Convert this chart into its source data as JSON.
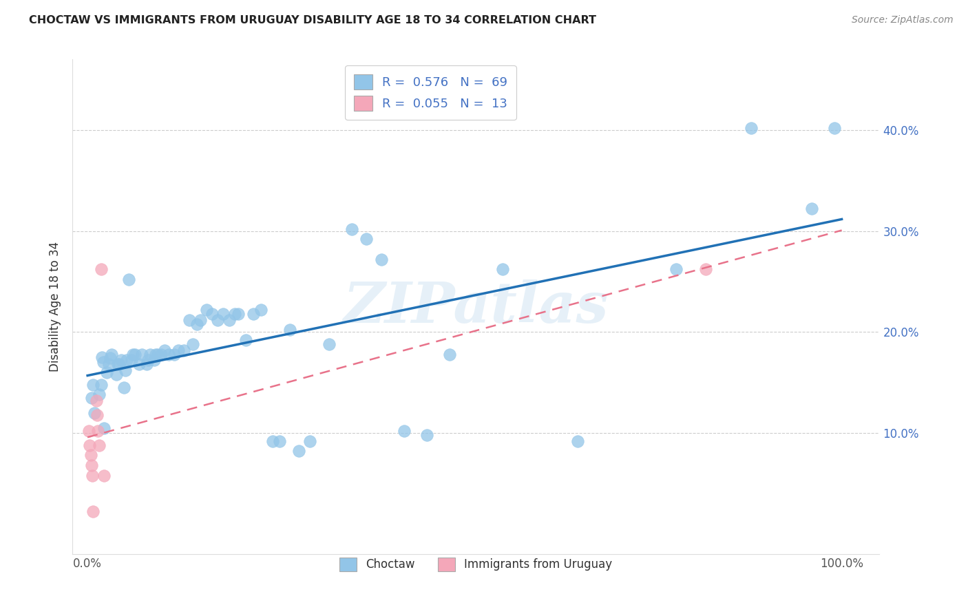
{
  "title": "CHOCTAW VS IMMIGRANTS FROM URUGUAY DISABILITY AGE 18 TO 34 CORRELATION CHART",
  "source": "Source: ZipAtlas.com",
  "ylabel": "Disability Age 18 to 34",
  "xlim": [
    -0.02,
    1.05
  ],
  "ylim": [
    -0.02,
    0.47
  ],
  "xticks": [
    0.0,
    0.2,
    0.4,
    0.6,
    0.8,
    1.0
  ],
  "xticklabels_show": [
    "0.0%",
    "",
    "",
    "",
    "",
    "100.0%"
  ],
  "ytick_positions": [
    0.1,
    0.2,
    0.3,
    0.4
  ],
  "yticklabels": [
    "10.0%",
    "20.0%",
    "30.0%",
    "40.0%"
  ],
  "legend_labels": [
    "Choctaw",
    "Immigrants from Uruguay"
  ],
  "choctaw_color": "#92C5E8",
  "choctaw_edge_color": "#92C5E8",
  "choctaw_line_color": "#2171B5",
  "uruguay_color": "#F4A7B9",
  "uruguay_edge_color": "#F4A7B9",
  "uruguay_line_color": "#E8728A",
  "R_choctaw": "0.576",
  "N_choctaw": "69",
  "R_uruguay": "0.055",
  "N_uruguay": "13",
  "watermark": "ZIPatlas",
  "choctaw_x": [
    0.005,
    0.007,
    0.009,
    0.015,
    0.018,
    0.019,
    0.021,
    0.022,
    0.025,
    0.028,
    0.03,
    0.032,
    0.038,
    0.04,
    0.042,
    0.045,
    0.048,
    0.05,
    0.052,
    0.055,
    0.058,
    0.06,
    0.063,
    0.068,
    0.072,
    0.078,
    0.08,
    0.083,
    0.088,
    0.09,
    0.093,
    0.098,
    0.102,
    0.108,
    0.115,
    0.12,
    0.128,
    0.135,
    0.14,
    0.145,
    0.15,
    0.158,
    0.165,
    0.172,
    0.18,
    0.188,
    0.195,
    0.2,
    0.21,
    0.22,
    0.23,
    0.245,
    0.255,
    0.268,
    0.28,
    0.295,
    0.32,
    0.35,
    0.37,
    0.39,
    0.42,
    0.45,
    0.48,
    0.55,
    0.65,
    0.78,
    0.88,
    0.96,
    0.99
  ],
  "choctaw_y": [
    0.135,
    0.148,
    0.12,
    0.138,
    0.148,
    0.175,
    0.17,
    0.105,
    0.16,
    0.168,
    0.174,
    0.178,
    0.158,
    0.168,
    0.168,
    0.172,
    0.145,
    0.162,
    0.172,
    0.252,
    0.172,
    0.178,
    0.178,
    0.168,
    0.178,
    0.168,
    0.172,
    0.178,
    0.172,
    0.178,
    0.178,
    0.178,
    0.182,
    0.178,
    0.178,
    0.182,
    0.182,
    0.212,
    0.188,
    0.208,
    0.212,
    0.222,
    0.218,
    0.212,
    0.218,
    0.212,
    0.218,
    0.218,
    0.192,
    0.218,
    0.222,
    0.092,
    0.092,
    0.202,
    0.082,
    0.092,
    0.188,
    0.302,
    0.292,
    0.272,
    0.102,
    0.098,
    0.178,
    0.262,
    0.092,
    0.262,
    0.402,
    0.322,
    0.402
  ],
  "uruguay_x": [
    0.002,
    0.003,
    0.004,
    0.005,
    0.006,
    0.007,
    0.012,
    0.013,
    0.014,
    0.015,
    0.022,
    0.018,
    0.82
  ],
  "uruguay_y": [
    0.102,
    0.088,
    0.078,
    0.068,
    0.058,
    0.022,
    0.132,
    0.118,
    0.102,
    0.088,
    0.058,
    0.262,
    0.262
  ]
}
